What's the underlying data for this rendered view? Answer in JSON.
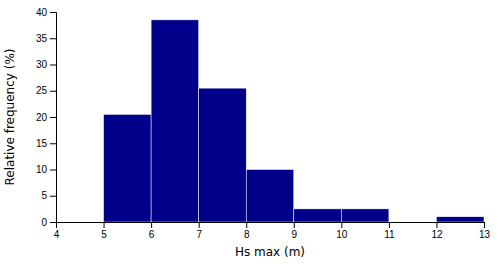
{
  "chart_data": {
    "type": "histogram",
    "bins": [
      4,
      5,
      6,
      7,
      8,
      9,
      10,
      11,
      12,
      13
    ],
    "values": [
      0,
      20.5,
      38.5,
      25.5,
      10.0,
      2.5,
      2.5,
      0,
      1.0
    ],
    "color": "#00008B",
    "x_label": "Hs max (m)",
    "y_label": "Relative frequency (%)",
    "xlim": [
      4,
      13
    ],
    "ylim": [
      0,
      40
    ],
    "xticks": [
      4,
      5,
      6,
      7,
      8,
      9,
      10,
      11,
      12,
      13
    ],
    "yticks": [
      0,
      5,
      10,
      15,
      20,
      25,
      30,
      35,
      40
    ]
  }
}
